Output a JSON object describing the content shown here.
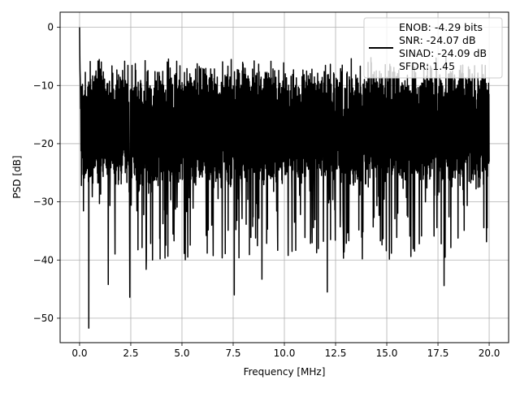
{
  "chart_data": {
    "type": "line",
    "title": "",
    "xlabel": "Frequency [MHz]",
    "ylabel": "PSD [dB]",
    "xlim": [
      -0.95,
      20.95
    ],
    "ylim": [
      -54.2,
      2.6
    ],
    "xticks": [
      0.0,
      2.5,
      5.0,
      7.5,
      10.0,
      12.5,
      15.0,
      17.5,
      20.0
    ],
    "xtick_labels": [
      "0.0",
      "2.5",
      "5.0",
      "7.5",
      "10.0",
      "12.5",
      "15.0",
      "17.5",
      "20.0"
    ],
    "yticks": [
      0,
      -10,
      -20,
      -30,
      -40,
      -50
    ],
    "ytick_labels": [
      "0",
      "−10",
      "−20",
      "−30",
      "−40",
      "−50"
    ],
    "grid": true,
    "legend_placement": "top-right",
    "legend": {
      "lines": [
        "ENOB: -4.29 bits",
        "SNR: -24.07 dB",
        "SINAD: -24.09 dB",
        "SFDR: 1.45"
      ]
    },
    "series": [
      {
        "color": "#000000",
        "description": "dense noise spectrum",
        "x_range": [
          0.0,
          20.0
        ],
        "upper_envelope_dB": -5,
        "typical_band_dB": [
          -25,
          -10
        ],
        "dc_peak": {
          "x": 0.0,
          "y": 0.0
        },
        "notable_dips": [
          {
            "x": 0.45,
            "y": -51.7
          },
          {
            "x": 2.45,
            "y": -46.4
          },
          {
            "x": 7.55,
            "y": -46.0
          },
          {
            "x": 8.9,
            "y": -43.3
          },
          {
            "x": 12.1,
            "y": -45.5
          },
          {
            "x": 17.8,
            "y": -44.4
          },
          {
            "x": 3.25,
            "y": -41.6
          },
          {
            "x": 1.4,
            "y": -44.2
          }
        ],
        "n_points": 2000
      }
    ]
  }
}
